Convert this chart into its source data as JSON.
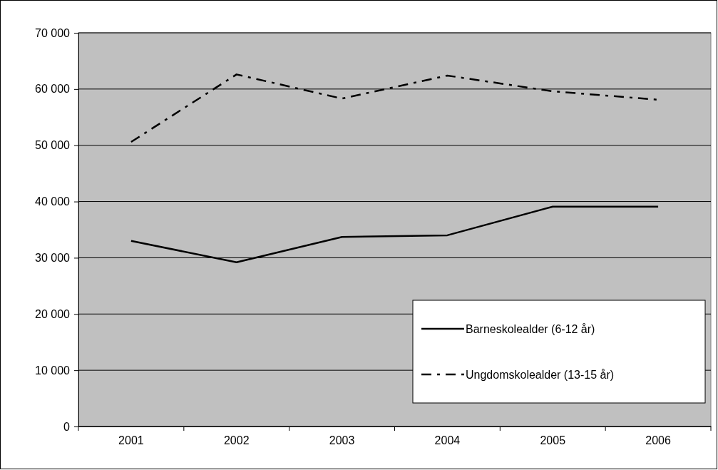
{
  "chart_data": {
    "type": "line",
    "categories": [
      "2001",
      "2002",
      "2003",
      "2004",
      "2005",
      "2006"
    ],
    "series": [
      {
        "name": "Barneskolealder (6-12 år)",
        "color": "#000000",
        "line_style": "solid",
        "values": [
          33000,
          29200,
          33700,
          34000,
          39100,
          39100
        ]
      },
      {
        "name": "Ungdomskolealder (13-15 år)",
        "color": "#000000",
        "line_style": "dashed",
        "values": [
          50600,
          62600,
          58300,
          62400,
          59600,
          58100
        ]
      }
    ],
    "ylim": [
      0,
      70000
    ],
    "yticks": [
      {
        "value": 0,
        "label": "0"
      },
      {
        "value": 10000,
        "label": "10 000"
      },
      {
        "value": 20000,
        "label": "20 000"
      },
      {
        "value": 30000,
        "label": "30 000"
      },
      {
        "value": 40000,
        "label": "40 000"
      },
      {
        "value": 50000,
        "label": "50 000"
      },
      {
        "value": 60000,
        "label": "60 000"
      },
      {
        "value": 70000,
        "label": "70 000"
      }
    ],
    "grid": "y",
    "legend": "bottom right",
    "marker": "none"
  }
}
